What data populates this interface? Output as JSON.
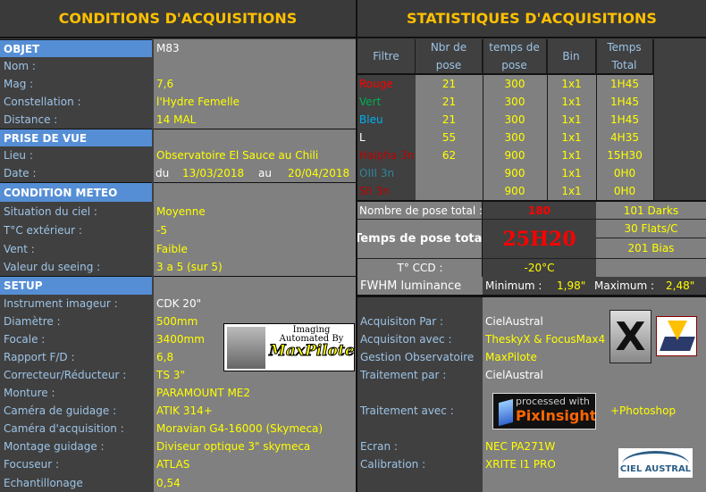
{
  "left": {
    "title": "CONDITIONS D'ACQUISITIONS",
    "rows": [
      {
        "type": "header",
        "label": "OBJET",
        "value": "M83",
        "value_color": "#ffffff"
      },
      {
        "label": "Nom :",
        "value": ""
      },
      {
        "label": "Mag :",
        "value": "7,6"
      },
      {
        "label": "Constellation :",
        "value": "l'Hydre Femelle"
      },
      {
        "label": "Distance :",
        "value": "14 MAL"
      },
      {
        "type": "header",
        "label": "PRISE DE VUE",
        "value": ""
      },
      {
        "label": "Lieu :",
        "value": "Observatoire El Sauce au Chili"
      },
      {
        "label": "Date :",
        "date": {
          "du": "du",
          "start": "13/03/2018",
          "au": "au",
          "end": "20/04/2018"
        }
      },
      {
        "type": "header",
        "label": "CONDITION METEO",
        "value": ""
      },
      {
        "label": "Situation du ciel  :",
        "value": "Moyenne"
      },
      {
        "label": "T°C extérieur :",
        "value": "-5"
      },
      {
        "label": "Vent :",
        "value": "Faible"
      },
      {
        "label": "Valeur du seeing  :",
        "value": "3 a 5   (sur 5)"
      },
      {
        "type": "header",
        "label": "SETUP",
        "value": ""
      },
      {
        "label": "Instrument imageur :",
        "value": "CDK 20\"",
        "value_color": "#ffffff"
      },
      {
        "label": "Diamètre :",
        "value": "500mm"
      },
      {
        "label": "Focale :",
        "value": "3400mm"
      },
      {
        "label": "Rapport F/D :",
        "value": "6,8"
      },
      {
        "label": "Correcteur/Réducteur :",
        "value": "TS 3\""
      },
      {
        "label": "Monture :",
        "value": "PARAMOUNT ME2"
      },
      {
        "label": "Caméra de guidage :",
        "value": "ATIK 314+"
      },
      {
        "label": "Caméra d'acquisition :",
        "value": "Moravian G4-16000 (Skymeca)"
      },
      {
        "label": "Montage guidage :",
        "value": "Diviseur optique 3\" skymeca"
      },
      {
        "label": "Focuseur :",
        "value": "ATLAS"
      },
      {
        "label": "Echantillonage",
        "value": "0,54"
      }
    ],
    "maxpilote_logo": {
      "line1": "Imaging",
      "line2": "Automated By",
      "brand": "MaxPilote"
    }
  },
  "right": {
    "title": "STATISTIQUES D'ACQUISITIONS",
    "columns": [
      [
        "Filtre"
      ],
      [
        "Nbr de",
        "pose"
      ],
      [
        "temps de",
        "pose"
      ],
      [
        "Bin"
      ],
      [
        "Temps",
        "Total"
      ]
    ],
    "filters": [
      {
        "name": "Rouge",
        "color": "#ff0000",
        "count": "21",
        "exposure": "300",
        "bin": "1x1",
        "total": "1H45"
      },
      {
        "name": "Vert",
        "color": "#00b050",
        "count": "21",
        "exposure": "300",
        "bin": "1x1",
        "total": "1H45"
      },
      {
        "name": "Bleu",
        "color": "#00b0f0",
        "count": "21",
        "exposure": "300",
        "bin": "1x1",
        "total": "1H45"
      },
      {
        "name": "L",
        "color": "#ffffff",
        "count": "55",
        "exposure": "300",
        "bin": "1x1",
        "total": "4H35"
      },
      {
        "name": "Halpha 3n",
        "color": "#c00000",
        "count": "62",
        "exposure": "900",
        "bin": "1x1",
        "total": "15H30"
      },
      {
        "name": "OIII 3n",
        "color": "#31859c",
        "count": "",
        "exposure": "900",
        "bin": "1x1",
        "total": "0H0"
      },
      {
        "name": "SII 3n",
        "color": "#c00000",
        "count": "",
        "exposure": "900",
        "bin": "1x1",
        "total": "0H0"
      }
    ],
    "total_count_label": "Nombre de pose total :",
    "total_count": "180",
    "total_time_label": "Temps de pose total",
    "total_time": "25H20",
    "darks": "101 Darks",
    "flats": "30 Flats/C",
    "bias": "201 Bias",
    "ccd_label": "T° CCD :",
    "ccd_value": "-20°C",
    "fwhm_label": "FWHM luminance",
    "fwhm_min_label": "Minimum :",
    "fwhm_min": "1,98\"",
    "fwhm_max_label": "Maximum :",
    "fwhm_max": "2,48\"",
    "info": [
      {
        "label": "Acquisiton Par :",
        "value": "CielAustral",
        "value_color": "#ffffff"
      },
      {
        "label": "Acquisiton avec :",
        "value": "TheskyX  & FocusMax4"
      },
      {
        "label": "Gestion Observatoire",
        "value": "MaxPilote"
      },
      {
        "label": "Traitement par :",
        "value": "CielAustral",
        "value_color": "#ffffff"
      },
      {
        "label": "Traitement avec :",
        "value": "+Photoshop"
      },
      {
        "label": "Ecran :",
        "value": "NEC PA271W"
      },
      {
        "label": "Calibration :",
        "value": "XRITE I1 PRO"
      }
    ],
    "pixinsight_logo": {
      "line1": "processed with",
      "brand": "PixInsight"
    },
    "cielaustral_logo": "CIEL AUSTRAL"
  }
}
